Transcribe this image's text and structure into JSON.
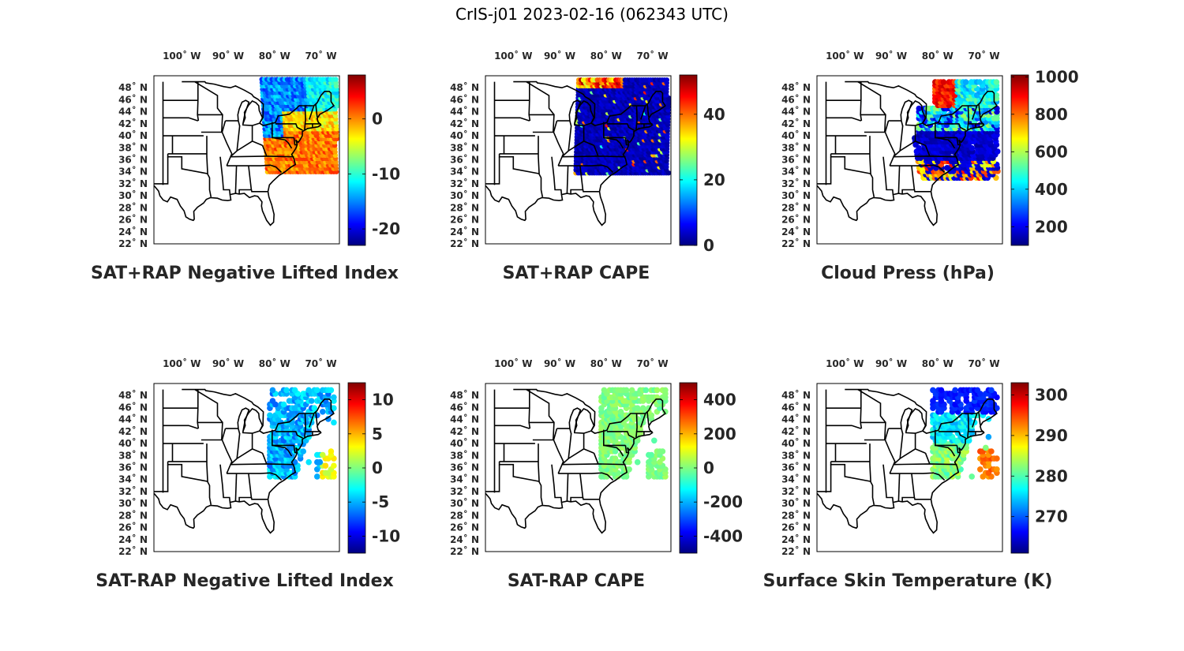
{
  "title": "CrIS-j01 2023-02-16 (062343 UTC)",
  "map": {
    "lon_ticks": [
      "100˚ W",
      "90˚ W",
      "80˚ W",
      "70˚ W"
    ],
    "lat_ticks": [
      "48˚ N",
      "46˚ N",
      "44˚ N",
      "42˚ N",
      "40˚ N",
      "38˚ N",
      "36˚ N",
      "34˚ N",
      "32˚ N",
      "30˚ N",
      "28˚ N",
      "26˚ N",
      "24˚ N",
      "22˚ N"
    ],
    "lon_range": [
      -106,
      -66
    ],
    "lat_range": [
      22,
      50
    ]
  },
  "panels": [
    {
      "title": "SAT+RAP Negative Lifted Index",
      "colorbar_ticks": [
        "0",
        "-10",
        "-20"
      ],
      "colorbar_range": [
        -23,
        8
      ],
      "colorbar_tick_values": [
        0,
        -10,
        -20
      ],
      "field": "nli_sum"
    },
    {
      "title": "SAT+RAP CAPE",
      "colorbar_ticks": [
        "40",
        "20",
        "0"
      ],
      "colorbar_range": [
        0,
        52
      ],
      "colorbar_tick_values": [
        40,
        20,
        0
      ],
      "field": "cape_sum"
    },
    {
      "title": "Cloud Press (hPa)",
      "colorbar_ticks": [
        "1000",
        "800",
        "600",
        "400",
        "200"
      ],
      "colorbar_range": [
        100,
        1010
      ],
      "colorbar_tick_values": [
        1000,
        800,
        600,
        400,
        200
      ],
      "field": "cloud_press"
    },
    {
      "title": "SAT-RAP Negative Lifted Index",
      "colorbar_ticks": [
        "10",
        "5",
        "0",
        "-5",
        "-10"
      ],
      "colorbar_range": [
        -12.5,
        12.5
      ],
      "colorbar_tick_values": [
        10,
        5,
        0,
        -5,
        -10
      ],
      "field": "nli_diff"
    },
    {
      "title": "SAT-RAP CAPE",
      "colorbar_ticks": [
        "400",
        "200",
        "0",
        "-200",
        "-400"
      ],
      "colorbar_range": [
        -500,
        500
      ],
      "colorbar_tick_values": [
        400,
        200,
        0,
        -200,
        -400
      ],
      "field": "cape_diff"
    },
    {
      "title": "Surface Skin Temperature (K)",
      "colorbar_ticks": [
        "300",
        "290",
        "280",
        "270"
      ],
      "colorbar_range": [
        261,
        303
      ],
      "colorbar_tick_values": [
        300,
        290,
        280,
        270
      ],
      "field": "skin_temp"
    }
  ],
  "colormap": "jet"
}
